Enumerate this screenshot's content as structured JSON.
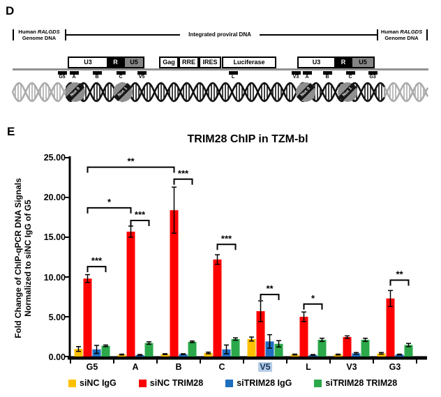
{
  "figure": {
    "panelD": {
      "label": "D",
      "genome_left": {
        "line1_prefix": "Human ",
        "gene": "RALGDS",
        "line2": "Genome DNA"
      },
      "provirus_label": "Integrated proviral DNA",
      "genome_right": {
        "line1_prefix": "Human ",
        "gene": "RALGDS",
        "line2": "Genome DNA"
      },
      "boxes": [
        "U3",
        "R",
        "U5",
        "Gag",
        "RRE",
        "IRES",
        "Luciferase",
        "U3",
        "R",
        "U5"
      ],
      "primers": [
        "G5",
        "A",
        "B",
        "C",
        "V5",
        "L",
        "V3",
        "A",
        "B",
        "C",
        "G3"
      ],
      "nucleosomes": [
        "Nuc 0",
        "Nuc 1",
        "Nuc 0",
        "Nuc 1"
      ]
    },
    "panelE": {
      "label": "E"
    }
  },
  "chart_data": {
    "type": "bar",
    "title": "TRIM28 ChIP in TZM-bl",
    "ylabel_line1": "Fold Change of ChIP-qPCR DNA Signals",
    "ylabel_line2": "Normalized to siNC IgG of G5",
    "ylim": [
      0,
      25
    ],
    "yticks": [
      "0.00",
      "5.00",
      "10.00",
      "15.00",
      "20.00",
      "25.00"
    ],
    "categories": [
      "G5",
      "A",
      "B",
      "C",
      "V5",
      "L",
      "V3",
      "G3"
    ],
    "highlighted_category": "V5",
    "grid": false,
    "legend_position": "bottom",
    "series": [
      {
        "name": "siNC IgG",
        "color": "#FFC000",
        "values": [
          0.95,
          0.25,
          0.3,
          0.45,
          2.2,
          0.25,
          0.25,
          0.4
        ],
        "errors": [
          0.3,
          0.05,
          0.05,
          0.1,
          0.25,
          0.05,
          0.05,
          0.1
        ]
      },
      {
        "name": "siNC TRIM28",
        "color": "#FF0000",
        "values": [
          9.8,
          15.7,
          18.4,
          12.2,
          5.7,
          5.0,
          2.45,
          7.3
        ],
        "errors": [
          0.5,
          0.7,
          2.9,
          0.6,
          1.3,
          0.6,
          0.15,
          1.0
        ]
      },
      {
        "name": "siTRIM28 IgG",
        "color": "#1F6EC0",
        "values": [
          0.9,
          0.2,
          0.3,
          0.9,
          1.9,
          0.2,
          0.4,
          0.25
        ],
        "errors": [
          0.5,
          0.05,
          0.05,
          0.55,
          0.85,
          0.05,
          0.1,
          0.05
        ]
      },
      {
        "name": "siTRIM28 TRIM28",
        "color": "#2BA84A",
        "values": [
          1.35,
          1.7,
          1.85,
          2.2,
          1.6,
          2.1,
          2.1,
          1.45
        ],
        "errors": [
          0.1,
          0.15,
          0.1,
          0.15,
          0.4,
          0.2,
          0.2,
          0.2
        ]
      }
    ],
    "significance_brackets": [
      {
        "from": {
          "g": 0,
          "s": 1
        },
        "to": {
          "g": 2,
          "s": 1
        },
        "level": 23.8,
        "label": "**"
      },
      {
        "from": {
          "g": 0,
          "s": 1
        },
        "to": {
          "g": 1,
          "s": 1
        },
        "level": 18.7,
        "label": "*"
      },
      {
        "from": {
          "g": 0,
          "s": 1
        },
        "to": {
          "g": 0,
          "s": 3
        },
        "level": 11.3,
        "label": "***"
      },
      {
        "from": {
          "g": 1,
          "s": 1
        },
        "to": {
          "g": 1,
          "s": 3
        },
        "level": 17.1,
        "label": "***"
      },
      {
        "from": {
          "g": 2,
          "s": 1
        },
        "to": {
          "g": 2,
          "s": 3
        },
        "level": 22.3,
        "label": "***"
      },
      {
        "from": {
          "g": 3,
          "s": 1
        },
        "to": {
          "g": 3,
          "s": 3
        },
        "level": 14.1,
        "label": "***"
      },
      {
        "from": {
          "g": 4,
          "s": 1
        },
        "to": {
          "g": 4,
          "s": 3
        },
        "level": 7.8,
        "label": "**"
      },
      {
        "from": {
          "g": 5,
          "s": 1
        },
        "to": {
          "g": 5,
          "s": 3
        },
        "level": 6.6,
        "label": "*"
      },
      {
        "from": {
          "g": 7,
          "s": 1
        },
        "to": {
          "g": 7,
          "s": 3
        },
        "level": 9.6,
        "label": "**"
      }
    ]
  }
}
